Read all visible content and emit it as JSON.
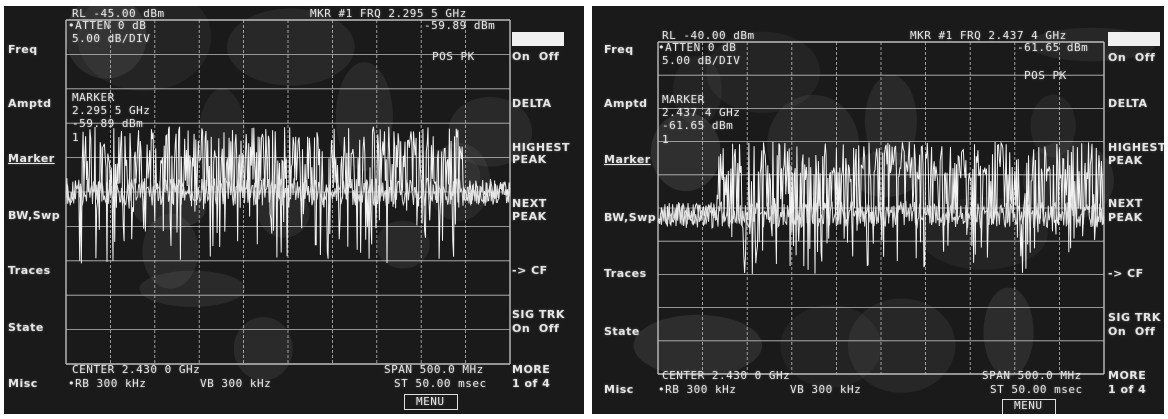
{
  "panels": [
    {
      "id": "left",
      "ref_level": "RL -45.00 dBm",
      "marker_freq_readout": "MKR #1 FRQ 2.295 5 GHz",
      "marker_amp_readout": "-59.89 dBm",
      "atten": "•ATTEN 0 dB",
      "scale": "5.00 dB/DIV",
      "peak_mode": "POS PK",
      "marker_title": "MARKER",
      "marker_freq": "2.295 5 GHz",
      "marker_amp": "-59.89 dBm",
      "marker_num": "1",
      "center": "CENTER 2.430 0 GHz",
      "rbw": "•RB 300 kHz",
      "vbw": "VB 300 kHz",
      "span": "SPAN 500.0 MHz",
      "sweep": "ST 50.00 msec",
      "menu": "MENU",
      "left_menu": [
        "Freq",
        "Amptd",
        "Marker",
        "BW,Swp",
        "Traces",
        "State",
        "Misc"
      ],
      "softkeys": {
        "on_off": "On  Off",
        "delta": "DELTA",
        "highest_peak_1": "HIGHEST",
        "highest_peak_2": "PEAK",
        "next_peak_1": "NEXT",
        "next_peak_2": "PEAK",
        "to_cf": "-> CF",
        "sig_trk": "SIG TRK",
        "sig_trk_state": "On  Off",
        "more": "MORE",
        "page": "1 of 4"
      },
      "signal": {
        "start_div": 0.3,
        "end_div": 9.0,
        "level_div": 3.1,
        "noise_div": 5.0
      }
    },
    {
      "id": "right",
      "ref_level": "RL -40.00 dBm",
      "marker_freq_readout": "MKR #1 FRQ 2.437 4 GHz",
      "marker_amp_readout": "-61.65 dBm",
      "atten": "•ATTEN 0 dB",
      "scale": "5.00 dB/DIV",
      "peak_mode": "POS PK",
      "marker_title": "MARKER",
      "marker_freq": "2.437 4 GHz",
      "marker_amp": "-61.65 dBm",
      "marker_num": "1",
      "center": "CENTER 2.430 0 GHz",
      "rbw": "•RB 300 kHz",
      "vbw": "VB 300 kHz",
      "span": "SPAN 500.0 MHz",
      "sweep": "ST 50.00 msec",
      "menu": "MENU",
      "left_menu": [
        "Freq",
        "Amptd",
        "Marker",
        "BW,Swp",
        "Traces",
        "State",
        "Misc"
      ],
      "softkeys": {
        "on_off": "On  Off",
        "delta": "DELTA",
        "highest_peak_1": "HIGHEST",
        "highest_peak_2": "PEAK",
        "next_peak_1": "NEXT",
        "next_peak_2": "PEAK",
        "to_cf": "-> CF",
        "sig_trk": "SIG TRK",
        "sig_trk_state": "On  Off",
        "more": "MORE",
        "page": "1 of 4"
      },
      "signal": {
        "start_div": 1.3,
        "end_div": 10.0,
        "level_div": 3.0,
        "noise_div": 5.2
      }
    }
  ]
}
